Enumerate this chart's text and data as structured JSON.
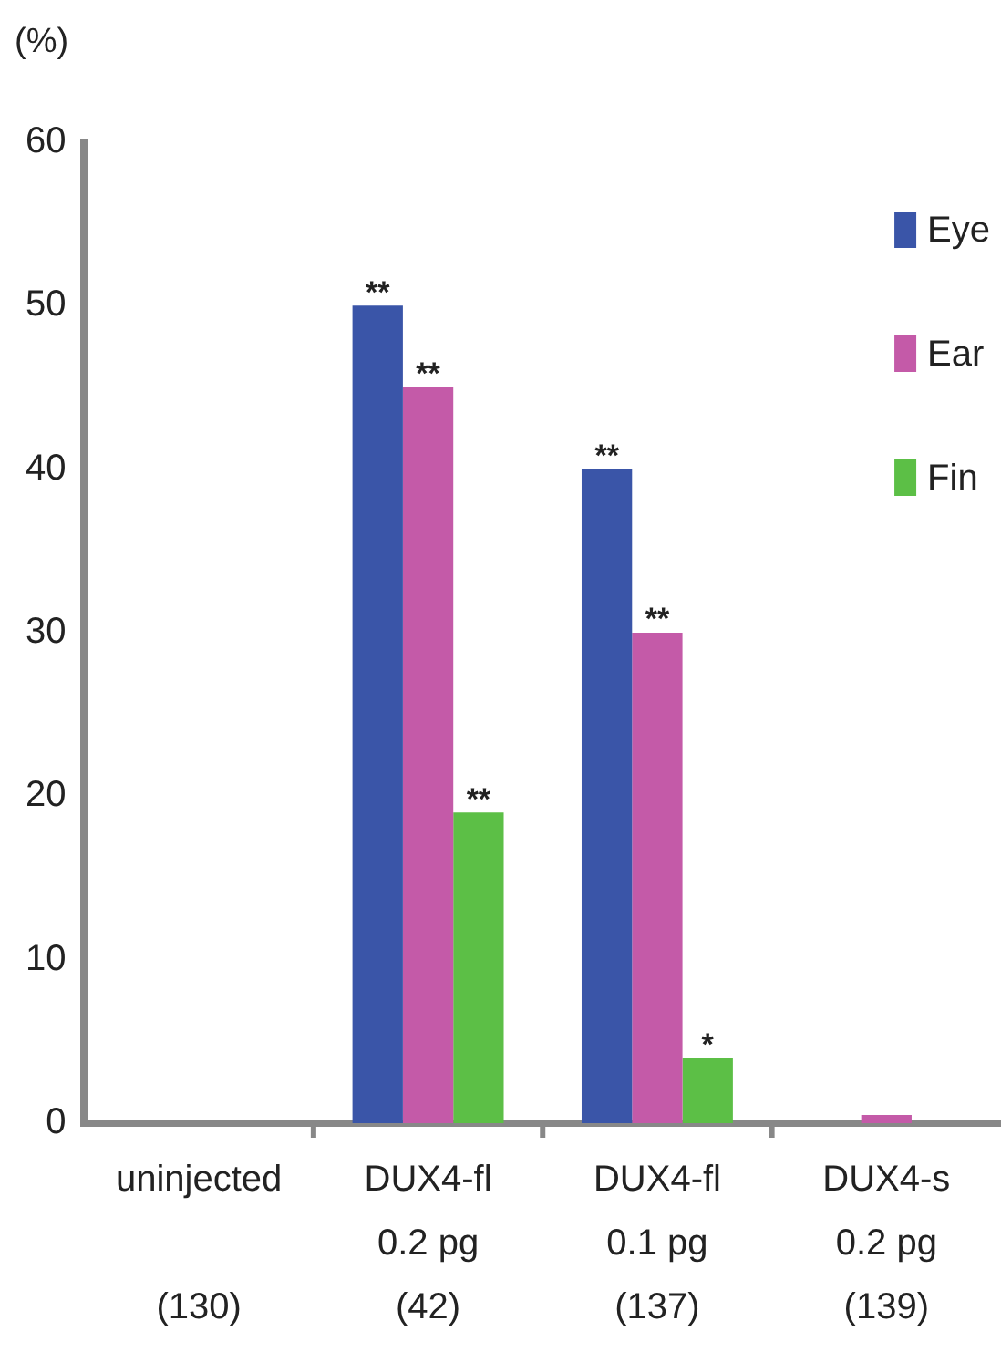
{
  "chart_data": {
    "type": "bar",
    "ylabel": "(%)",
    "categories": [
      "uninjected\n\n(130)",
      "DUX4-fl\n0.2 pg\n(42)",
      "DUX4-fl\n0.1 pg\n(137)",
      "DUX4-s\n0.2 pg\n(139)"
    ],
    "series": [
      {
        "name": "Eye",
        "color": "#3a55a8",
        "values": [
          0,
          50,
          40,
          0
        ],
        "value_labels": [
          null,
          "**",
          "**",
          null
        ]
      },
      {
        "name": "Ear",
        "color": "#c45aa8",
        "values": [
          0,
          45,
          30,
          0.5
        ],
        "value_labels": [
          null,
          "**",
          "**",
          null
        ]
      },
      {
        "name": "Fin",
        "color": "#5cbf46",
        "values": [
          0,
          19,
          4,
          0
        ],
        "value_labels": [
          null,
          "**",
          "*",
          null
        ]
      }
    ],
    "ylim": [
      0,
      60
    ],
    "yticks": [
      0,
      10,
      20,
      30,
      40,
      50,
      60
    ],
    "grid": false,
    "legend": "top right"
  }
}
